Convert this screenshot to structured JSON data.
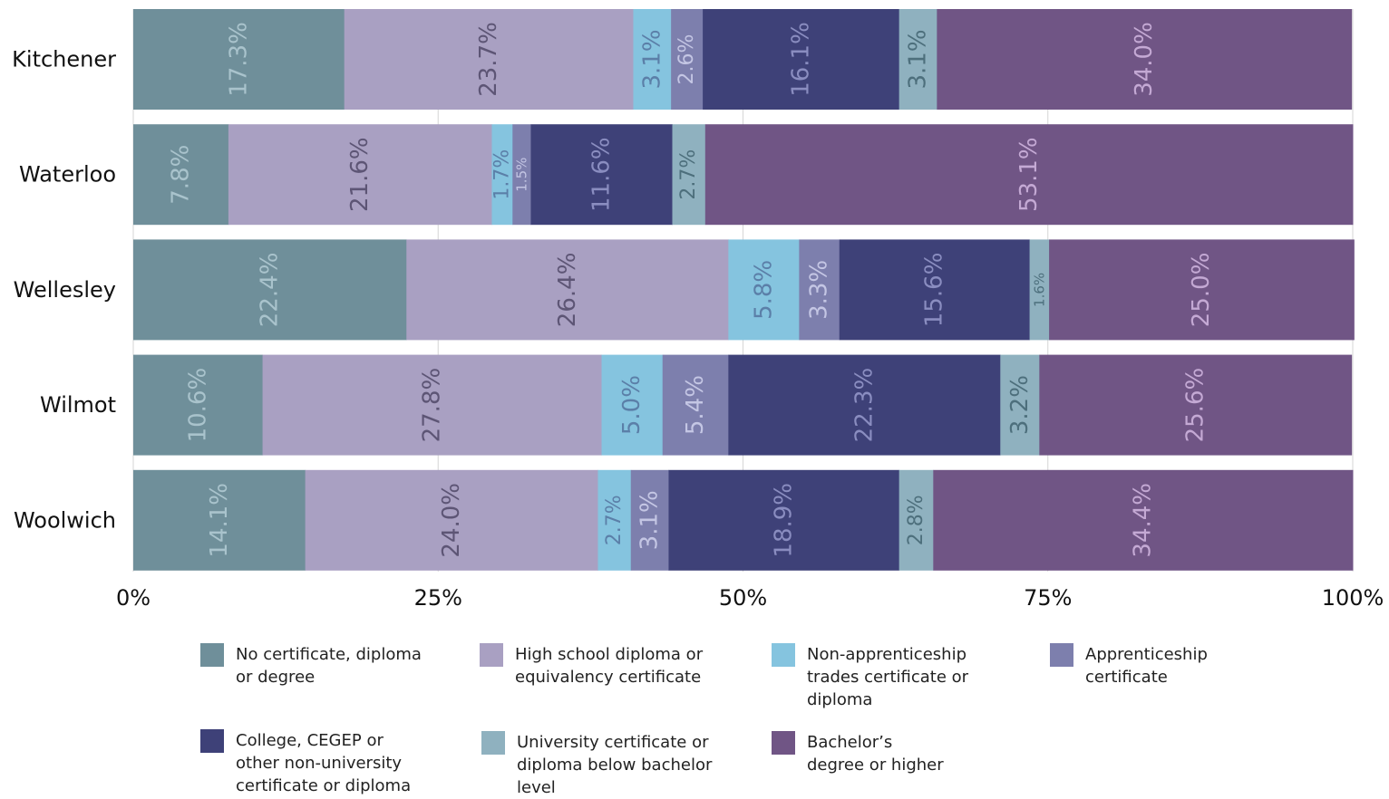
{
  "chart_data": {
    "type": "bar",
    "orientation": "horizontal",
    "stacked": true,
    "categories": [
      "Kitchener",
      "Waterloo",
      "Wellesley",
      "Wilmot",
      "Woolwich"
    ],
    "series": [
      {
        "name": "No certificate, diploma or degree",
        "color": "#6f8f9a",
        "values": [
          17.3,
          7.8,
          22.4,
          10.6,
          14.1
        ],
        "labels": [
          "17.3%",
          "7.8%",
          "22.4%",
          "10.6%",
          "14.1%"
        ],
        "label_color": "#a9c3cc"
      },
      {
        "name": "High school diploma or equivalency certificate",
        "color": "#a9a0c2",
        "values": [
          23.7,
          21.6,
          26.4,
          27.8,
          24.0
        ],
        "labels": [
          "23.7%",
          "21.6%",
          "26.4%",
          "27.8%",
          "24.0%"
        ],
        "label_color": "#5d5575"
      },
      {
        "name": "Non-apprenticeship trades certificate or diploma",
        "color": "#85c4df",
        "values": [
          3.1,
          1.7,
          5.8,
          5.0,
          2.7
        ],
        "labels": [
          "3.1%",
          "1.7%",
          "5.8%",
          "5.0%",
          "2.7%"
        ],
        "label_color": "#5b7fa8"
      },
      {
        "name": "Apprenticeship certificate",
        "color": "#7d7fad",
        "values": [
          2.6,
          1.5,
          3.3,
          5.4,
          3.1
        ],
        "labels": [
          "2.6%",
          "1.5%",
          "3.3%",
          "5.4%",
          "3.1%"
        ],
        "label_color": "#c4c6e4"
      },
      {
        "name": "College, CEGEP or other non-university certificate or diploma",
        "color": "#3e4178",
        "values": [
          16.1,
          11.6,
          15.6,
          22.3,
          18.9
        ],
        "labels": [
          "16.1%",
          "11.6%",
          "15.6%",
          "22.3%",
          "18.9%"
        ],
        "label_color": "#8a8dc0"
      },
      {
        "name": "University certificate or diploma below bachelor level",
        "color": "#8fb1bf",
        "values": [
          3.1,
          2.7,
          1.6,
          3.2,
          2.8
        ],
        "labels": [
          "3.1%",
          "2.7%",
          "1.6%",
          "3.2%",
          "2.8%"
        ],
        "label_color": "#4d6f7c"
      },
      {
        "name": "Bachelor’s degree or higher",
        "color": "#705585",
        "values": [
          34.0,
          53.1,
          25.0,
          25.6,
          34.4
        ],
        "labels": [
          "34.0%",
          "53.1%",
          "25.0%",
          "25.6%",
          "34.4%"
        ],
        "label_color": "#c4a9d4"
      }
    ],
    "xlim": [
      0,
      100
    ],
    "xticks": [
      0,
      25,
      50,
      75,
      100
    ],
    "xtick_labels": [
      "0%",
      "25%",
      "50%",
      "75%",
      "100%"
    ],
    "grid": true,
    "legend_position": "bottom",
    "legend_labels": [
      [
        "No certificate, diploma",
        "or degree"
      ],
      [
        "High school diploma or",
        "equivalency certificate"
      ],
      [
        "Non-apprenticeship",
        "trades certificate or",
        "diploma"
      ],
      [
        "Apprenticeship",
        "certificate"
      ],
      [
        "College, CEGEP or",
        "other non-university",
        "certificate or diploma"
      ],
      [
        "University certificate or",
        "diploma below bachelor",
        "level"
      ],
      [
        "Bachelor’s",
        "degree or higher"
      ]
    ]
  }
}
